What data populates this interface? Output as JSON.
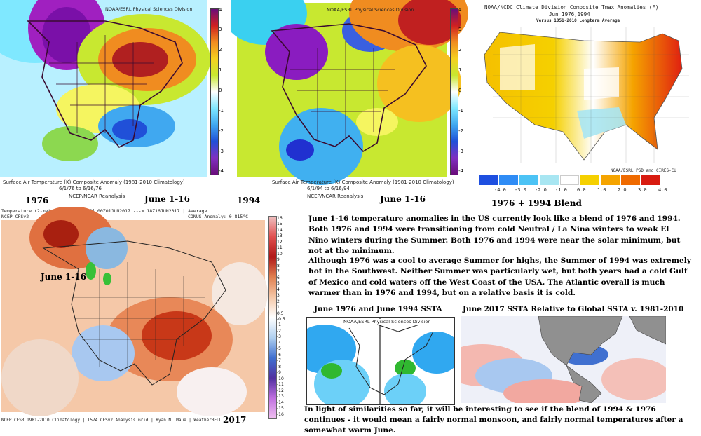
{
  "panel_1976": {
    "header": "NOAA/ESRL Physical Sciences Division",
    "caption_line1": "Surface Air Temperature (K) Composite Anomaly (1981-2010 Climatology)",
    "caption_line2": "6/1/76 to 6/16/76",
    "caption_line3": "NCEP/NCAR Reanalysis",
    "year_label": "1976",
    "period_label": "June 1-16",
    "colorbar_ticks": [
      "4",
      "3",
      "2",
      "1",
      "0",
      "-1",
      "-2",
      "-3",
      "-4"
    ]
  },
  "panel_1994": {
    "header": "NOAA/ESRL Physical Sciences Division",
    "caption_line1": "Surface Air Temperature (K) Composite Anomaly (1981-2010 Climatology)",
    "caption_line2": "6/1/94 to 6/16/94",
    "caption_line3": "NCEP/NCAR Reanalysis",
    "year_label": "1994",
    "period_label": "June 1-16",
    "colorbar_ticks": [
      "4",
      "3",
      "2",
      "1",
      "0",
      "-1",
      "-2",
      "-3",
      "-4"
    ]
  },
  "panel_blend": {
    "title_line1": "NOAA/NCDC Climate Division Composite Tmax Anomalies (F)",
    "title_line2": "Jun  1976,1994",
    "title_line3": "Versus 1951-2010 Longterm Average",
    "credit": "NOAA/ESRL PSD and CIRES-CU",
    "legend_labels": [
      "-4.0",
      "-3.0",
      "-2.0",
      "-1.0",
      "0.0",
      "1.0",
      "2.0",
      "3.0",
      "4.0"
    ],
    "legend_colors": [
      "#1e4fe0",
      "#2f8cf5",
      "#4cc3f5",
      "#a8e6f2",
      "#ffffff",
      "#f5d000",
      "#f5a400",
      "#ef6a00",
      "#d81b10"
    ],
    "label": "1976 + 1994 Blend"
  },
  "panel_2017": {
    "header_line1": "Temperature (2-meter) Anomaly  [°C]  00Z01JUN2017 ---> 18Z16JUN2017 | Average",
    "header_line2": "NCEP CFSv2",
    "header_right": "CONUS Anomaly: 0.815°C",
    "period_label": "June 1-16",
    "footer": "NCEP CFSR 1981-2010 Climatology | T574 CFSv2 Analysis Grid | Ryan N. Maue | WeatherBELL",
    "year_label": "2017",
    "colorbar_ticks": [
      "16",
      "15",
      "14",
      "13",
      "12",
      "11",
      "10",
      "9",
      "8",
      "7",
      "6",
      "5",
      "4",
      "3",
      "2",
      "1",
      "0.5",
      "-0.5",
      "-1",
      "-2",
      "-3",
      "-4",
      "-5",
      "-6",
      "-7",
      "-8",
      "-9",
      "-10",
      "-11",
      "-12",
      "-13",
      "-14",
      "-15",
      "-16"
    ]
  },
  "text": {
    "paragraph1": "June 1-16 temperature anomalies in the US currently look like a blend of 1976 and 1994. Both 1976 and 1994 were transitioning from cold Neutral / La Nina winters to weak El Nino winters during the Summer. Both 1976 and 1994 were near the solar minimum, but not at the minimum.",
    "paragraph2": "Although 1976 was a cool to average Summer for highs, the Summer of 1994 was extremely hot in the Southwest. Neither Summer was particularly wet, but both years had a cold Gulf of Mexico and cold waters off the West Coast of the USA. The Atlantic overall is much warmer than in 1976 and 1994, but on a relative basis it is cold.",
    "paragraph3": "In light of similarities so far, it will be interesting to see if the blend of 1994 & 1976 continues - it would mean a fairly normal monsoon, and fairly normal temperatures after a somewhat warm June."
  },
  "sst_left": {
    "label": "June 1976 and June 1994 SSTA",
    "header": "NOAA/ESRL Physical Sciences Division"
  },
  "sst_right": {
    "label": "June 2017 SSTA Relative to Global SSTA v. 1981-2010"
  }
}
